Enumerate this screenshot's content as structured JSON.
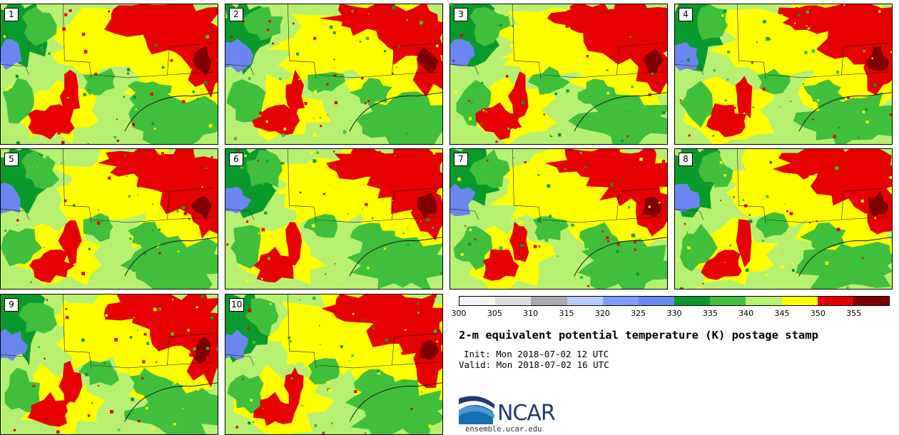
{
  "panels": [
    {
      "label": "1",
      "col": 0,
      "row": 0,
      "seed": 11
    },
    {
      "label": "2",
      "col": 1,
      "row": 0,
      "seed": 23
    },
    {
      "label": "3",
      "col": 2,
      "row": 0,
      "seed": 37
    },
    {
      "label": "4",
      "col": 3,
      "row": 0,
      "seed": 41
    },
    {
      "label": "5",
      "col": 0,
      "row": 1,
      "seed": 53
    },
    {
      "label": "6",
      "col": 1,
      "row": 1,
      "seed": 67
    },
    {
      "label": "7",
      "col": 2,
      "row": 1,
      "seed": 71
    },
    {
      "label": "8",
      "col": 3,
      "row": 1,
      "seed": 89
    },
    {
      "label": "9",
      "col": 0,
      "row": 2,
      "seed": 97
    },
    {
      "label": "10",
      "col": 1,
      "row": 2,
      "seed": 103
    }
  ],
  "colorbar": {
    "colors": [
      "#f3f3f3",
      "#dcdcdc",
      "#a9a9a9",
      "#b9ccff",
      "#7f9cf8",
      "#6b86f0",
      "#0a9a2c",
      "#3fbf3c",
      "#b7f070",
      "#ffff00",
      "#e60000",
      "#7e0000"
    ],
    "ticks": [
      "300",
      "305",
      "310",
      "315",
      "320",
      "325",
      "330",
      "335",
      "340",
      "345",
      "350",
      "355"
    ]
  },
  "title": "2-m equivalent potential temperature (K) postage stamp",
  "init": "Init: Mon 2018-07-02 12 UTC",
  "valid": "Valid: Mon 2018-07-02 16 UTC",
  "logo": {
    "name": "NCAR",
    "url": "ensemble.ucar.edu"
  }
}
